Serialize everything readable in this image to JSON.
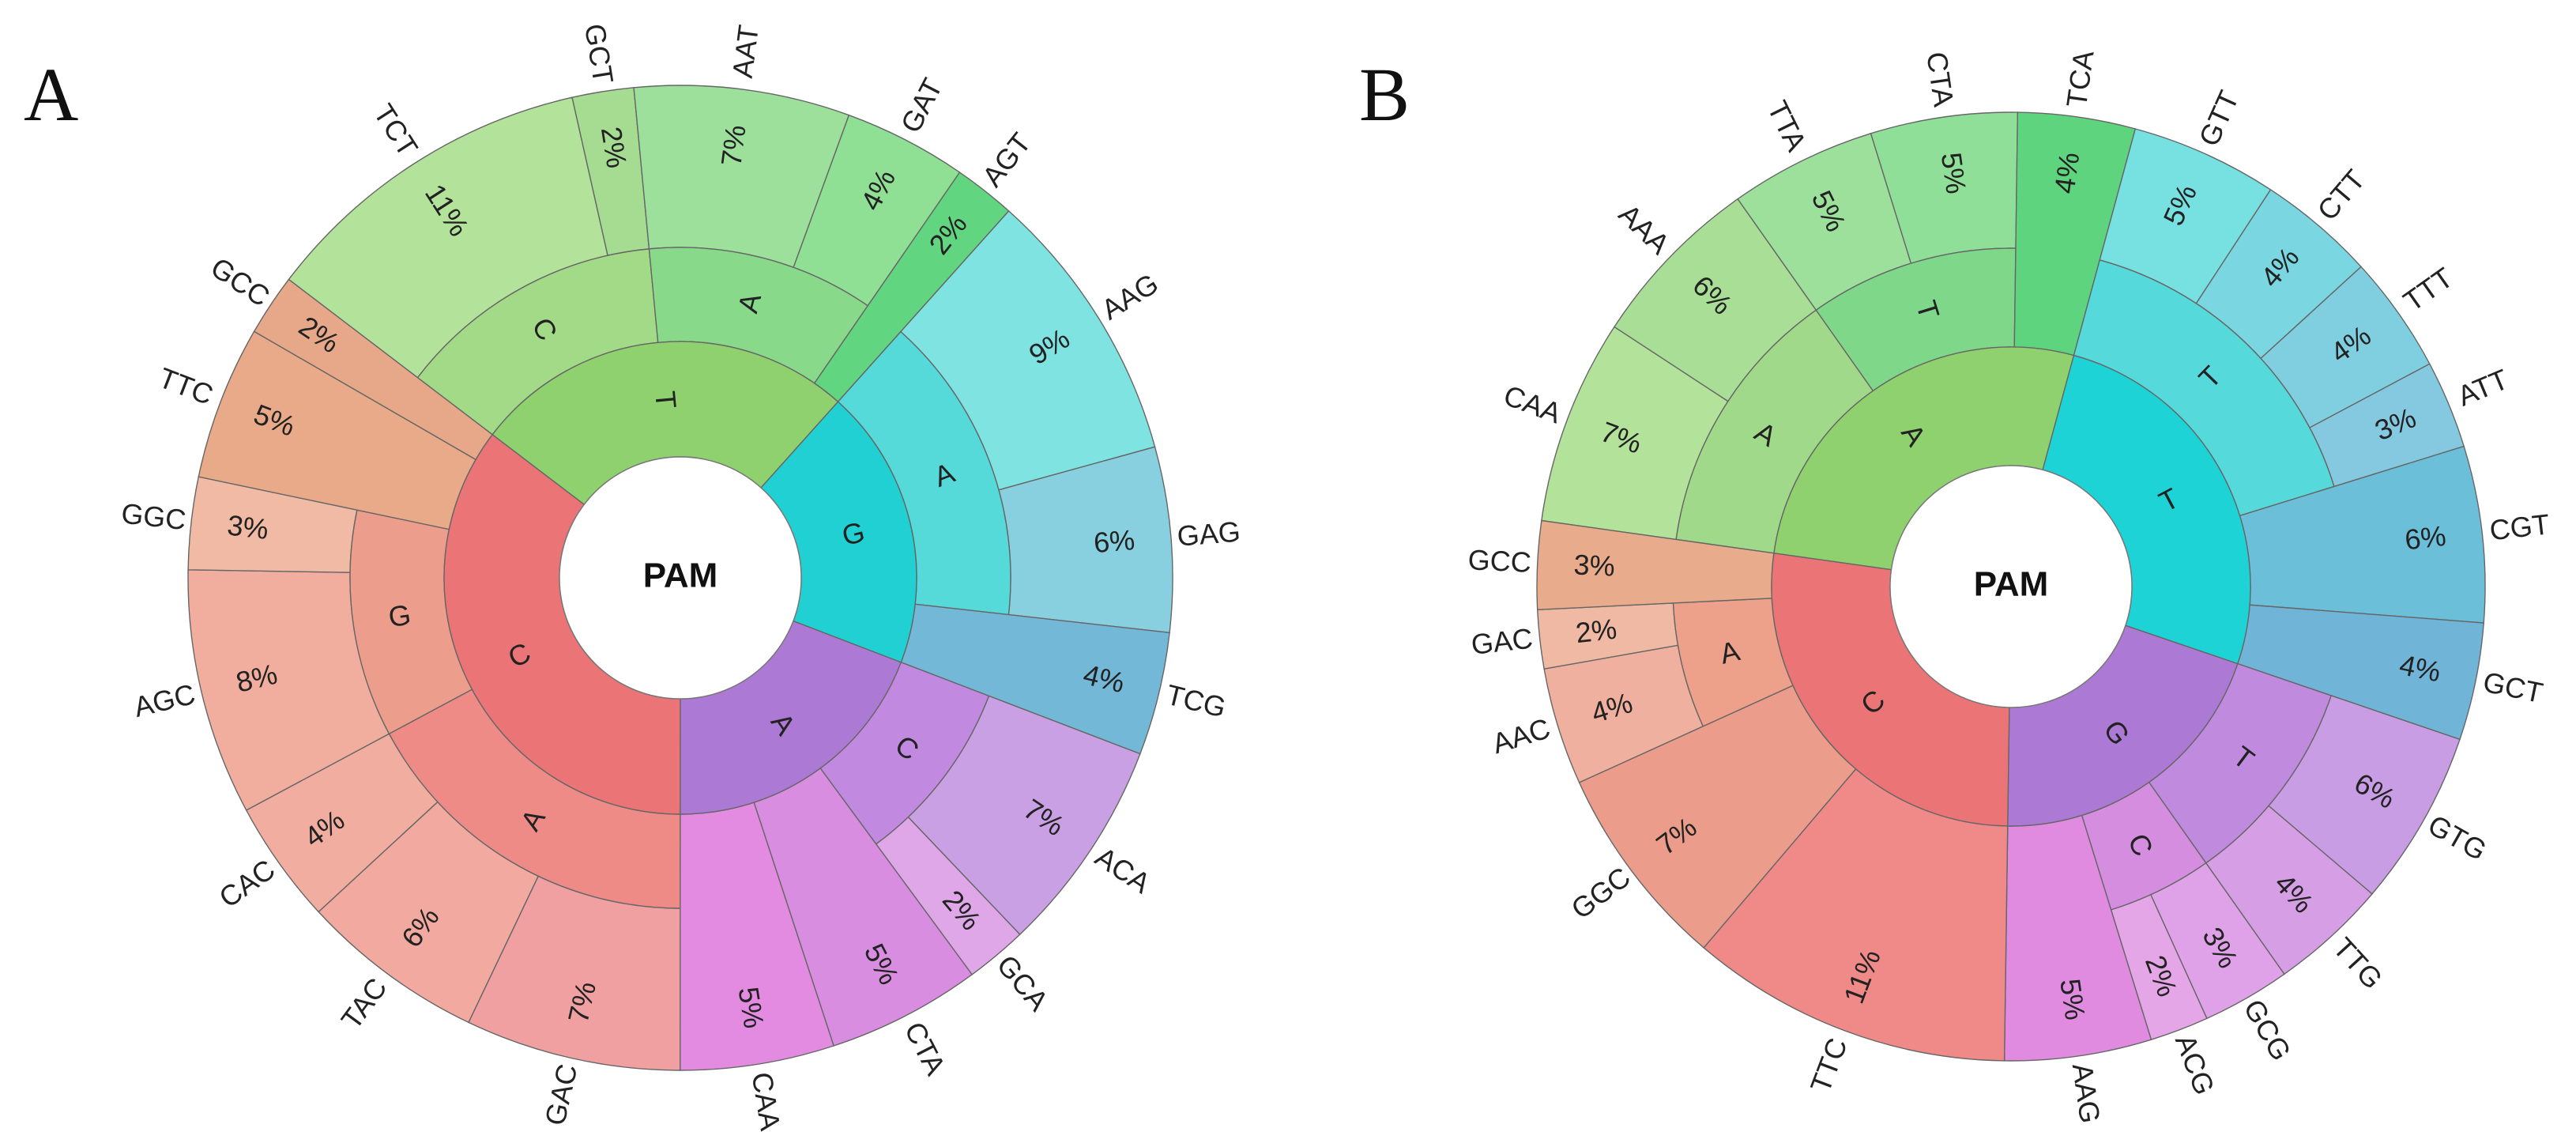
{
  "chart_data": [
    {
      "type": "sunburst",
      "panel_label": "A",
      "center_label": "PAM",
      "nodes": [
        {
          "label": "T",
          "color": "#8ed16e",
          "children": [
            {
              "label": "C",
              "color": "#a3da88",
              "children": [
                {
                  "label": "TCT",
                  "value": 11,
                  "value_label": "11%",
                  "color": "#b3e29b"
                },
                {
                  "label": "GCT",
                  "value": 2,
                  "value_label": "2%",
                  "color": "#a5dc91"
                }
              ]
            },
            {
              "label": "A",
              "color": "#89d98a",
              "children": [
                {
                  "label": "AAT",
                  "value": 7,
                  "value_label": "7%",
                  "color": "#9ce09c"
                },
                {
                  "label": "GAT",
                  "value": 4,
                  "value_label": "4%",
                  "color": "#8fdf95"
                }
              ]
            },
            {
              "label": null,
              "children": [
                {
                  "label": "AGT",
                  "value": 2,
                  "value_label": "2%",
                  "color": "#62d581"
                }
              ]
            }
          ]
        },
        {
          "label": "G",
          "color": "#21d0d2",
          "children": [
            {
              "label": "A",
              "color": "#55dad9",
              "children": [
                {
                  "label": "AAG",
                  "value": 9,
                  "value_label": "9%",
                  "color": "#7ee3e1"
                },
                {
                  "label": "GAG",
                  "value": 6,
                  "value_label": "6%",
                  "color": "#88d0df"
                }
              ]
            },
            {
              "label": null,
              "children": [
                {
                  "label": "TCG",
                  "value": 4,
                  "value_label": "4%",
                  "color": "#73b8d7"
                }
              ]
            }
          ]
        },
        {
          "label": "A",
          "color": "#ac79d4",
          "children": [
            {
              "label": "C",
              "color": "#c18ae0",
              "children": [
                {
                  "label": "ACA",
                  "value": 7,
                  "value_label": "7%",
                  "color": "#c9a0e4"
                },
                {
                  "label": "GCA",
                  "value": 2,
                  "value_label": "2%",
                  "color": "#dfa6e8"
                }
              ]
            },
            {
              "label": null,
              "children": [
                {
                  "label": "CTA",
                  "value": 5,
                  "value_label": "5%",
                  "color": "#d88de0"
                }
              ]
            },
            {
              "label": null,
              "children": [
                {
                  "label": "CAA",
                  "value": 5,
                  "value_label": "5%",
                  "color": "#e38be0"
                }
              ]
            }
          ]
        },
        {
          "label": "C",
          "color": "#ea7476",
          "children": [
            {
              "label": "A",
              "color": "#ee8b87",
              "children": [
                {
                  "label": "GAC",
                  "value": 7,
                  "value_label": "7%",
                  "color": "#f1a0a1"
                },
                {
                  "label": "TAC",
                  "value": 6,
                  "value_label": "6%",
                  "color": "#f1a9a0"
                },
                {
                  "label": "CAC",
                  "value": 4,
                  "value_label": "4%",
                  "color": "#f0ada0"
                }
              ]
            },
            {
              "label": "G",
              "color": "#ec9d8b",
              "children": [
                {
                  "label": "AGC",
                  "value": 8,
                  "value_label": "8%",
                  "color": "#f1ae9f"
                },
                {
                  "label": "GGC",
                  "value": 3,
                  "value_label": "3%",
                  "color": "#f0baa4"
                }
              ]
            },
            {
              "label": null,
              "children": [
                {
                  "label": "TTC",
                  "value": 5,
                  "value_label": "5%",
                  "color": "#e8aa88"
                }
              ]
            },
            {
              "label": null,
              "children": [
                {
                  "label": "GCC",
                  "value": 2,
                  "value_label": "2%",
                  "color": "#e6a888"
                }
              ]
            }
          ]
        }
      ]
    },
    {
      "type": "sunburst",
      "panel_label": "B",
      "center_label": "PAM",
      "nodes": [
        {
          "label": "A",
          "color": "#8ed16e",
          "children": [
            {
              "label": "A",
              "color": "#a1d98a",
              "children": [
                {
                  "label": "CAA",
                  "value": 7,
                  "value_label": "7%",
                  "color": "#b3e29b"
                },
                {
                  "label": "AAA",
                  "value": 6,
                  "value_label": "6%",
                  "color": "#a8de95"
                }
              ]
            },
            {
              "label": "T",
              "color": "#7fd889",
              "children": [
                {
                  "label": "TTA",
                  "value": 5,
                  "value_label": "5%",
                  "color": "#9ce09c"
                },
                {
                  "label": "CTA",
                  "value": 5,
                  "value_label": "5%",
                  "color": "#8fdf98"
                }
              ]
            },
            {
              "label": null,
              "children": [
                {
                  "label": "TCA",
                  "value": 4,
                  "value_label": "4%",
                  "color": "#5fd47f"
                }
              ]
            }
          ]
        },
        {
          "label": "T",
          "color": "#1dd3d6",
          "children": [
            {
              "label": "T",
              "color": "#56d9db",
              "children": [
                {
                  "label": "GTT",
                  "value": 5,
                  "value_label": "5%",
                  "color": "#77e0e0"
                },
                {
                  "label": "CTT",
                  "value": 4,
                  "value_label": "4%",
                  "color": "#7ad6e0"
                },
                {
                  "label": "TTT",
                  "value": 4,
                  "value_label": "4%",
                  "color": "#80cfe0"
                },
                {
                  "label": "ATT",
                  "value": 3,
                  "value_label": "3%",
                  "color": "#85c9e0"
                }
              ]
            },
            {
              "label": null,
              "children": [
                {
                  "label": "CGT",
                  "value": 6,
                  "value_label": "6%",
                  "color": "#6bbfd9"
                }
              ]
            },
            {
              "label": null,
              "children": [
                {
                  "label": "GCT",
                  "value": 4,
                  "value_label": "4%",
                  "color": "#70b4d8"
                }
              ]
            }
          ]
        },
        {
          "label": "G",
          "color": "#ac79d4",
          "children": [
            {
              "label": "T",
              "color": "#c08ade",
              "children": [
                {
                  "label": "GTG",
                  "value": 6,
                  "value_label": "6%",
                  "color": "#c99de3"
                },
                {
                  "label": "TTG",
                  "value": 4,
                  "value_label": "4%",
                  "color": "#d69fe5"
                }
              ]
            },
            {
              "label": "C",
              "color": "#d58de0",
              "children": [
                {
                  "label": "GCG",
                  "value": 3,
                  "value_label": "3%",
                  "color": "#dfa2e8"
                },
                {
                  "label": "ACG",
                  "value": 2,
                  "value_label": "2%",
                  "color": "#e5a6e8"
                }
              ]
            },
            {
              "label": null,
              "children": [
                {
                  "label": "AAG",
                  "value": 5,
                  "value_label": "5%",
                  "color": "#e08ae0"
                }
              ]
            }
          ]
        },
        {
          "label": "C",
          "color": "#ea7476",
          "children": [
            {
              "label": null,
              "children": [
                {
                  "label": "TTC",
                  "value": 11,
                  "value_label": "11%",
                  "color": "#ef8a88"
                }
              ]
            },
            {
              "label": null,
              "children": [
                {
                  "label": "GGC",
                  "value": 7,
                  "value_label": "7%",
                  "color": "#ec9c8a"
                }
              ]
            },
            {
              "label": "A",
              "color": "#eda08a",
              "children": [
                {
                  "label": "AAC",
                  "value": 4,
                  "value_label": "4%",
                  "color": "#f0b09f"
                },
                {
                  "label": "GAC",
                  "value": 2,
                  "value_label": "2%",
                  "color": "#f0b9a4"
                }
              ]
            },
            {
              "label": null,
              "children": [
                {
                  "label": "GCC",
                  "value": 3,
                  "value_label": "3%",
                  "color": "#e8ab8c"
                }
              ]
            }
          ]
        }
      ]
    }
  ]
}
